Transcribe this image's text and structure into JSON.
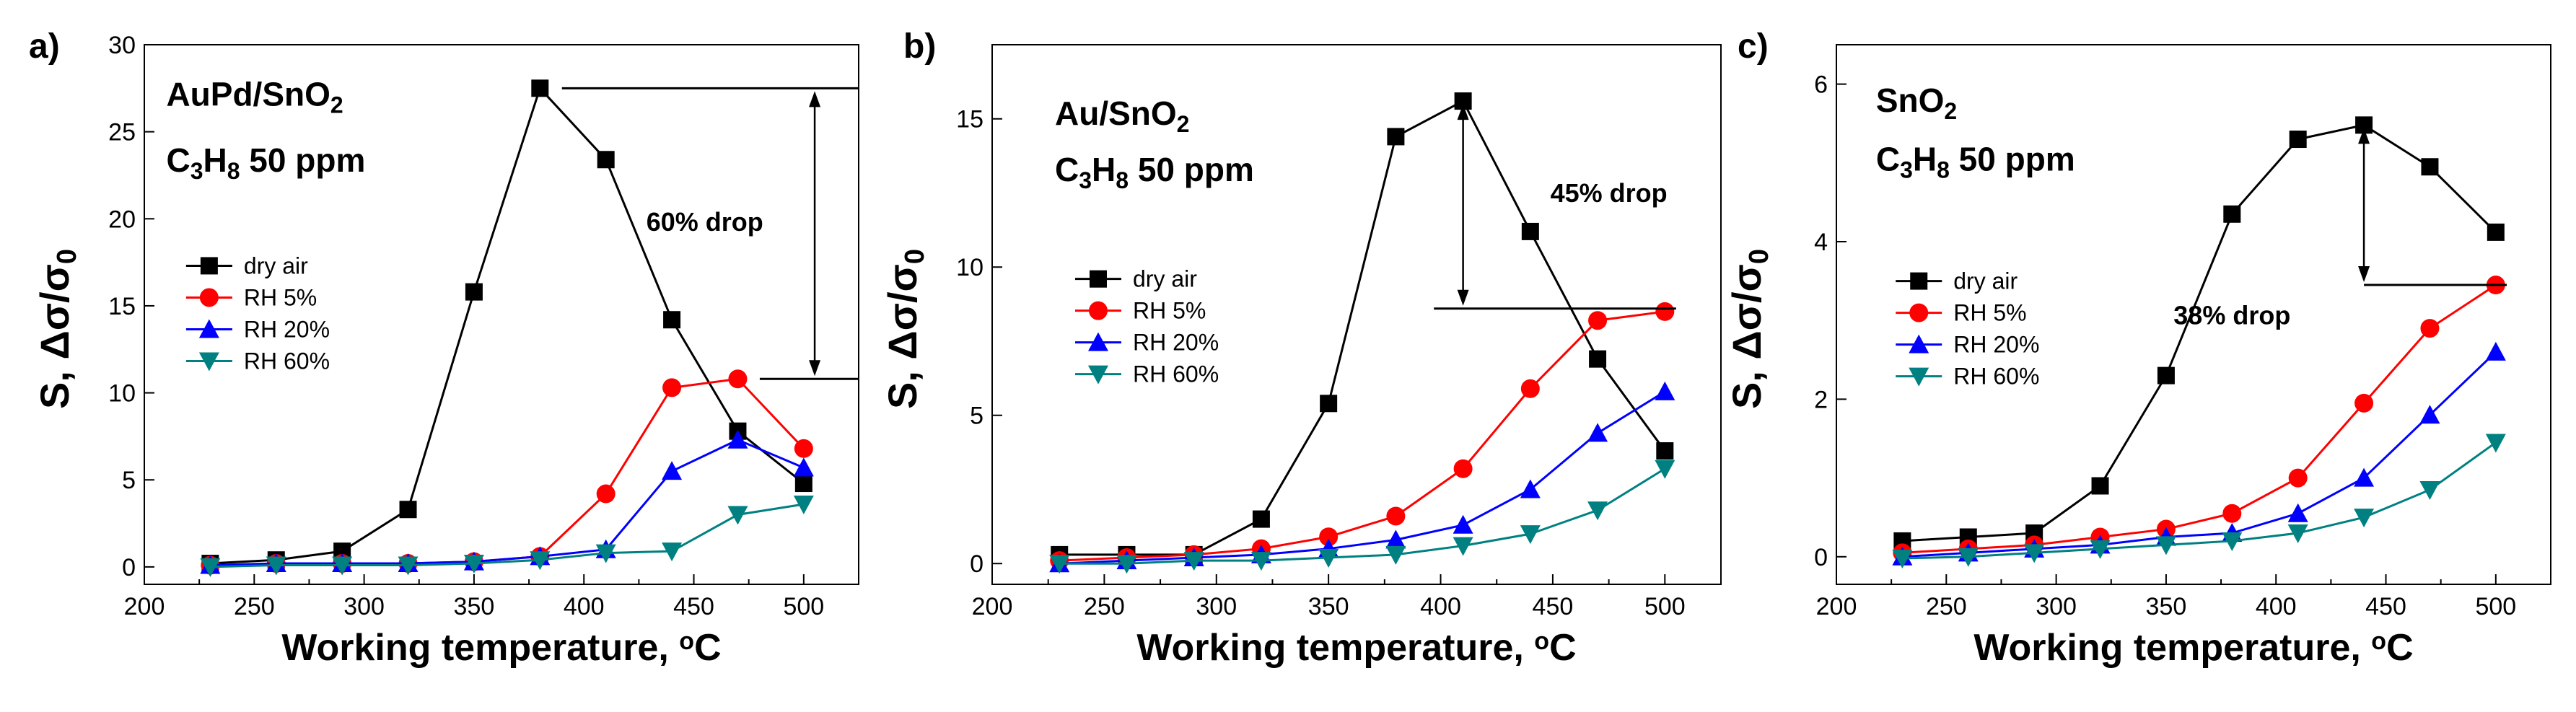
{
  "figure": {
    "colors": {
      "dry air": "#000000",
      "RH 5%": "#ff0000",
      "RH 20%": "#0000ff",
      "RH 60%": "#008080"
    },
    "markers": {
      "dry air": "square",
      "RH 5%": "circle",
      "RH 20%": "triangle-up",
      "RH 60%": "triangle-down"
    }
  },
  "chart_data": [
    {
      "type": "line",
      "panel_label": "a)",
      "material_base": "AuPd/SnO",
      "material_sub": "2",
      "gas_C": "C",
      "gas_3": "3",
      "gas_H": "H",
      "gas_8": "8",
      "gas_rest": " 50 ppm",
      "xlabel": "Working temperature, ",
      "xunit_o": "o",
      "xunit_C": "C",
      "ylabel": "S, Δσ/σ",
      "ylabel_sub": "0",
      "xlim": [
        200,
        525
      ],
      "ylim": [
        -1,
        30
      ],
      "xticks": [
        200,
        250,
        300,
        350,
        400,
        450,
        500
      ],
      "yticks": [
        0,
        5,
        10,
        15,
        20,
        25,
        30
      ],
      "x": [
        230,
        260,
        290,
        320,
        350,
        380,
        410,
        440,
        470,
        500
      ],
      "series": [
        {
          "name": "dry air",
          "values": [
            0.2,
            0.4,
            0.9,
            3.3,
            15.8,
            27.5,
            23.4,
            14.2,
            7.8,
            4.8
          ]
        },
        {
          "name": "RH 5%",
          "values": [
            0.1,
            0.2,
            0.2,
            0.2,
            0.3,
            0.6,
            4.2,
            10.3,
            10.8,
            6.8
          ]
        },
        {
          "name": "RH 20%",
          "values": [
            0.1,
            0.2,
            0.2,
            0.2,
            0.3,
            0.6,
            1.0,
            5.5,
            7.3,
            5.7
          ]
        },
        {
          "name": "RH 60%",
          "values": [
            0.0,
            0.1,
            0.1,
            0.1,
            0.2,
            0.4,
            0.8,
            0.9,
            3.0,
            3.6
          ]
        }
      ],
      "legend": [
        "dry air",
        "RH 5%",
        "RH 20%",
        "RH 60%"
      ],
      "annotation": "60% drop",
      "drop": {
        "y_top": 27.5,
        "y_bottom": 10.8,
        "arrow_x": 505,
        "top_line_from": 390,
        "top_line_to": 525,
        "bottom_line_from": 480,
        "bottom_line_to": 525,
        "text_x": 455,
        "text_y": 19.3
      },
      "material_pos": [
        210,
        26.5
      ],
      "gas_pos": [
        210,
        22.7
      ],
      "legend_pos": [
        219,
        17.3
      ]
    },
    {
      "type": "line",
      "panel_label": "b)",
      "material_base": "Au/SnO",
      "material_sub": "2",
      "gas_C": "C",
      "gas_3": "3",
      "gas_H": "H",
      "gas_8": "8",
      "gas_rest": " 50 ppm",
      "xlabel": "Working temperature, ",
      "xunit_o": "o",
      "xunit_C": "C",
      "ylabel": "S, Δσ/σ",
      "ylabel_sub": "0",
      "xlim": [
        200,
        525
      ],
      "ylim": [
        -0.7,
        17.5
      ],
      "xticks": [
        200,
        250,
        300,
        350,
        400,
        450,
        500
      ],
      "yticks": [
        0,
        5,
        10,
        15
      ],
      "x": [
        230,
        260,
        290,
        320,
        350,
        380,
        410,
        440,
        470,
        500
      ],
      "series": [
        {
          "name": "dry air",
          "values": [
            0.3,
            0.3,
            0.3,
            1.5,
            5.4,
            14.4,
            15.6,
            11.2,
            6.9,
            3.8
          ]
        },
        {
          "name": "RH 5%",
          "values": [
            0.1,
            0.2,
            0.3,
            0.5,
            0.9,
            1.6,
            3.2,
            5.9,
            8.2,
            8.5
          ]
        },
        {
          "name": "RH 20%",
          "values": [
            0.0,
            0.1,
            0.2,
            0.3,
            0.5,
            0.8,
            1.3,
            2.5,
            4.4,
            5.8
          ]
        },
        {
          "name": "RH 60%",
          "values": [
            0.0,
            0.0,
            0.1,
            0.1,
            0.2,
            0.3,
            0.6,
            1.0,
            1.8,
            3.2
          ]
        }
      ],
      "legend": [
        "dry air",
        "RH 5%",
        "RH 20%",
        "RH 60%"
      ],
      "annotation": "45% drop",
      "drop": {
        "y_top": 15.6,
        "y_bottom": 8.6,
        "arrow_x": 410,
        "top_line_from": 0,
        "top_line_to": 0,
        "bottom_line_from": 397,
        "bottom_line_to": 505,
        "text_x": 475,
        "text_y": 12.2
      },
      "material_pos": [
        228,
        14.8
      ],
      "gas_pos": [
        228,
        12.9
      ],
      "legend_pos": [
        237,
        9.6
      ]
    },
    {
      "type": "line",
      "panel_label": "c)",
      "material_base": "SnO",
      "material_sub": "2",
      "gas_C": "C",
      "gas_3": "3",
      "gas_H": "H",
      "gas_8": "8",
      "gas_rest": " 50 ppm",
      "xlabel": "Working temperature, ",
      "xunit_o": "o",
      "xunit_C": "C",
      "ylabel": "S, Δσ/σ",
      "ylabel_sub": "0",
      "xlim": [
        200,
        525
      ],
      "ylim": [
        -0.35,
        6.5
      ],
      "xticks": [
        200,
        250,
        300,
        350,
        400,
        450,
        500
      ],
      "yticks": [
        0,
        2,
        4,
        6
      ],
      "x": [
        230,
        260,
        290,
        320,
        350,
        380,
        410,
        440,
        470,
        500
      ],
      "series": [
        {
          "name": "dry air",
          "values": [
            0.2,
            0.25,
            0.3,
            0.9,
            2.3,
            4.35,
            5.3,
            5.48,
            4.95,
            4.12
          ]
        },
        {
          "name": "RH 5%",
          "values": [
            0.05,
            0.1,
            0.15,
            0.25,
            0.35,
            0.55,
            1.0,
            1.95,
            2.9,
            3.45
          ]
        },
        {
          "name": "RH 20%",
          "values": [
            0.0,
            0.05,
            0.1,
            0.15,
            0.25,
            0.3,
            0.55,
            1.0,
            1.8,
            2.6
          ]
        },
        {
          "name": "RH 60%",
          "values": [
            -0.02,
            0.0,
            0.05,
            0.1,
            0.15,
            0.2,
            0.3,
            0.5,
            0.85,
            1.45
          ]
        }
      ],
      "legend": [
        "dry air",
        "RH 5%",
        "RH 20%",
        "RH 60%"
      ],
      "annotation": "38% drop",
      "drop": {
        "y_top": 5.48,
        "y_bottom": 3.45,
        "arrow_x": 440,
        "top_line_from": 0,
        "top_line_to": 0,
        "bottom_line_from": 440,
        "bottom_line_to": 505,
        "text_x": 380,
        "text_y": 2.95
      },
      "material_pos": [
        218,
        5.65
      ],
      "gas_pos": [
        218,
        4.9
      ],
      "legend_pos": [
        227,
        3.5
      ]
    }
  ]
}
